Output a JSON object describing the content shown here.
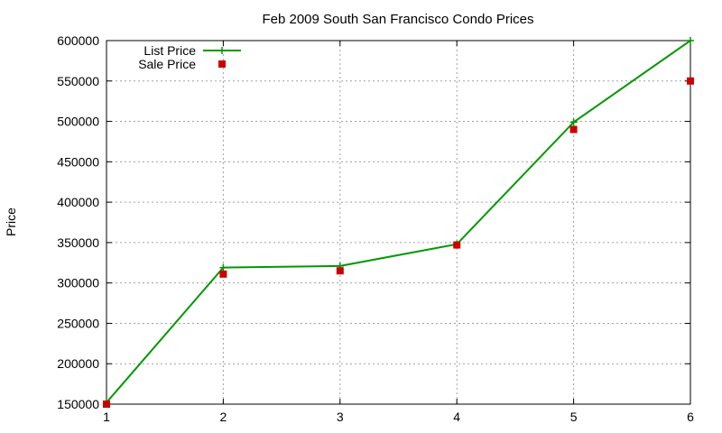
{
  "chart_data": {
    "type": "line",
    "title": "Feb 2009 South San Francisco Condo Prices",
    "xlabel": "",
    "ylabel": "Price",
    "x": [
      1,
      2,
      3,
      4,
      5,
      6
    ],
    "xlim": [
      1,
      6
    ],
    "ylim": [
      150000,
      600000
    ],
    "x_ticks": [
      "1",
      "2",
      "3",
      "4",
      "5",
      "6"
    ],
    "y_ticks": [
      "150000",
      "200000",
      "250000",
      "300000",
      "350000",
      "400000",
      "450000",
      "500000",
      "550000",
      "600000"
    ],
    "grid": true,
    "legend_position": "top-left",
    "series": [
      {
        "name": "List Price",
        "style": "line-with-plus-markers",
        "color": "#009900",
        "values": [
          152000,
          319000,
          321000,
          348000,
          499000,
          600000
        ]
      },
      {
        "name": "Sale Price",
        "style": "square-markers",
        "color": "#cc0000",
        "values": [
          150000,
          311000,
          315000,
          347000,
          490000,
          550000
        ]
      }
    ]
  }
}
